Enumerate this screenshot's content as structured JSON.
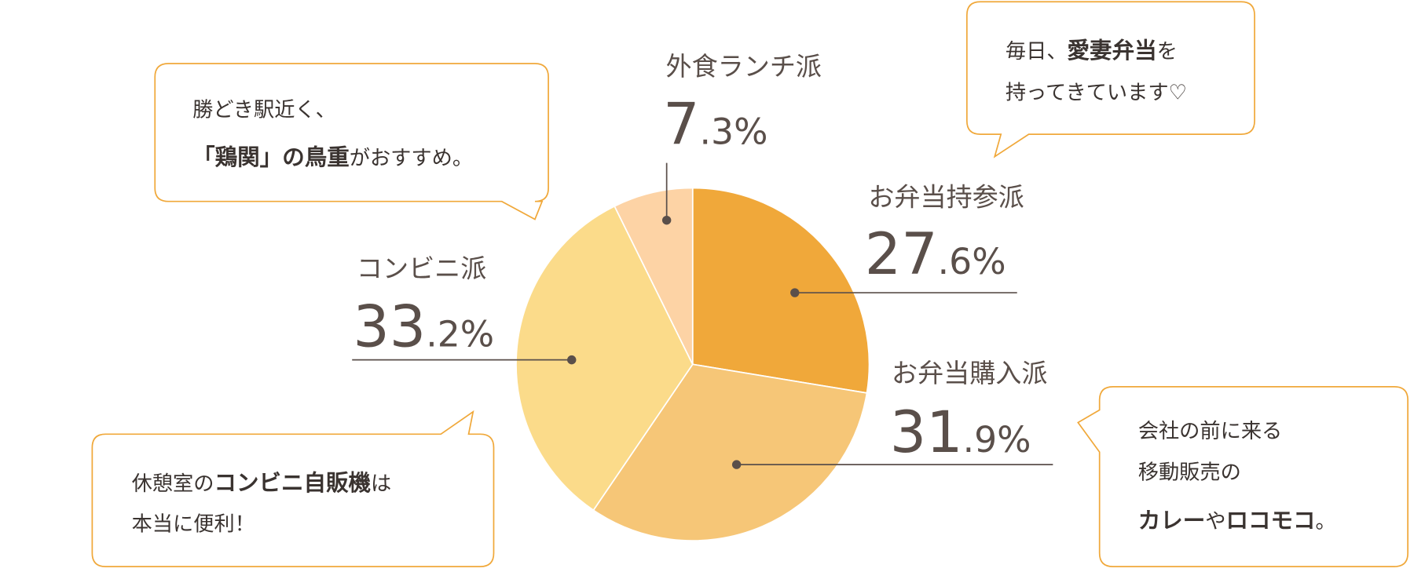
{
  "chart_data": {
    "type": "pie",
    "categories": [
      "お弁当持参派",
      "お弁当購入派",
      "コンビニ派",
      "外食ランチ派"
    ],
    "values": [
      27.6,
      31.9,
      33.2,
      7.3
    ],
    "value_labels": [
      "27.6%",
      "31.9%",
      "33.2%",
      "7.3%"
    ],
    "colors": [
      "#f0a83a",
      "#f6c677",
      "#fbdb8a",
      "#fdd3a5"
    ]
  },
  "callouts": [
    {
      "lines": [
        [
          "勝どき駅近く、"
        ],
        [
          "「鶏関」の鳥重",
          "がおすすめ。"
        ]
      ]
    },
    {
      "lines": [
        [
          "毎日、",
          "愛妻弁当",
          "を"
        ],
        [
          "持ってきています♡"
        ]
      ]
    },
    {
      "lines": [
        [
          "休憩室の",
          "コンビニ自販機",
          "は"
        ],
        [
          "本当に便利！"
        ]
      ]
    },
    {
      "lines": [
        [
          "会社の前に来る"
        ],
        [
          "移動販売の"
        ],
        [
          "カレー",
          "や",
          "ロコモコ",
          "。"
        ]
      ]
    }
  ]
}
